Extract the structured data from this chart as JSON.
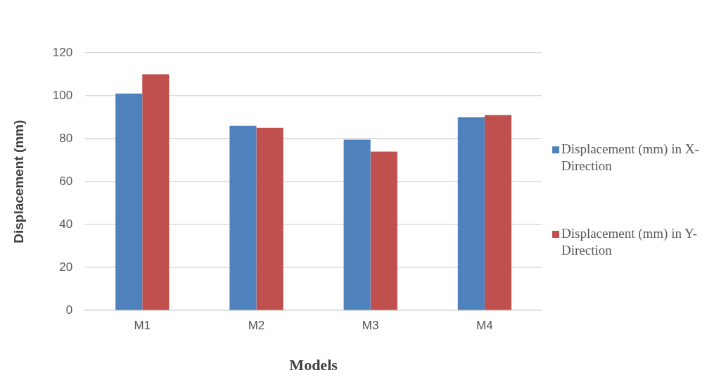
{
  "chart_data": {
    "type": "bar",
    "xlabel": "Models",
    "ylabel": "Displacement (mm)",
    "categories": [
      "M1",
      "M2",
      "M3",
      "M4"
    ],
    "series": [
      {
        "name": "Displacement (mm) in X-Direction",
        "color": "#4f81bd",
        "values": [
          101,
          86,
          79.5,
          90
        ]
      },
      {
        "name": "Displacement (mm) in Y-Direction",
        "color": "#c0504d",
        "values": [
          110,
          85,
          74,
          91
        ]
      }
    ],
    "ylim": [
      0,
      120
    ],
    "yticks": [
      0,
      20,
      40,
      60,
      80,
      100,
      120
    ],
    "grid": "y",
    "legend": "right"
  }
}
